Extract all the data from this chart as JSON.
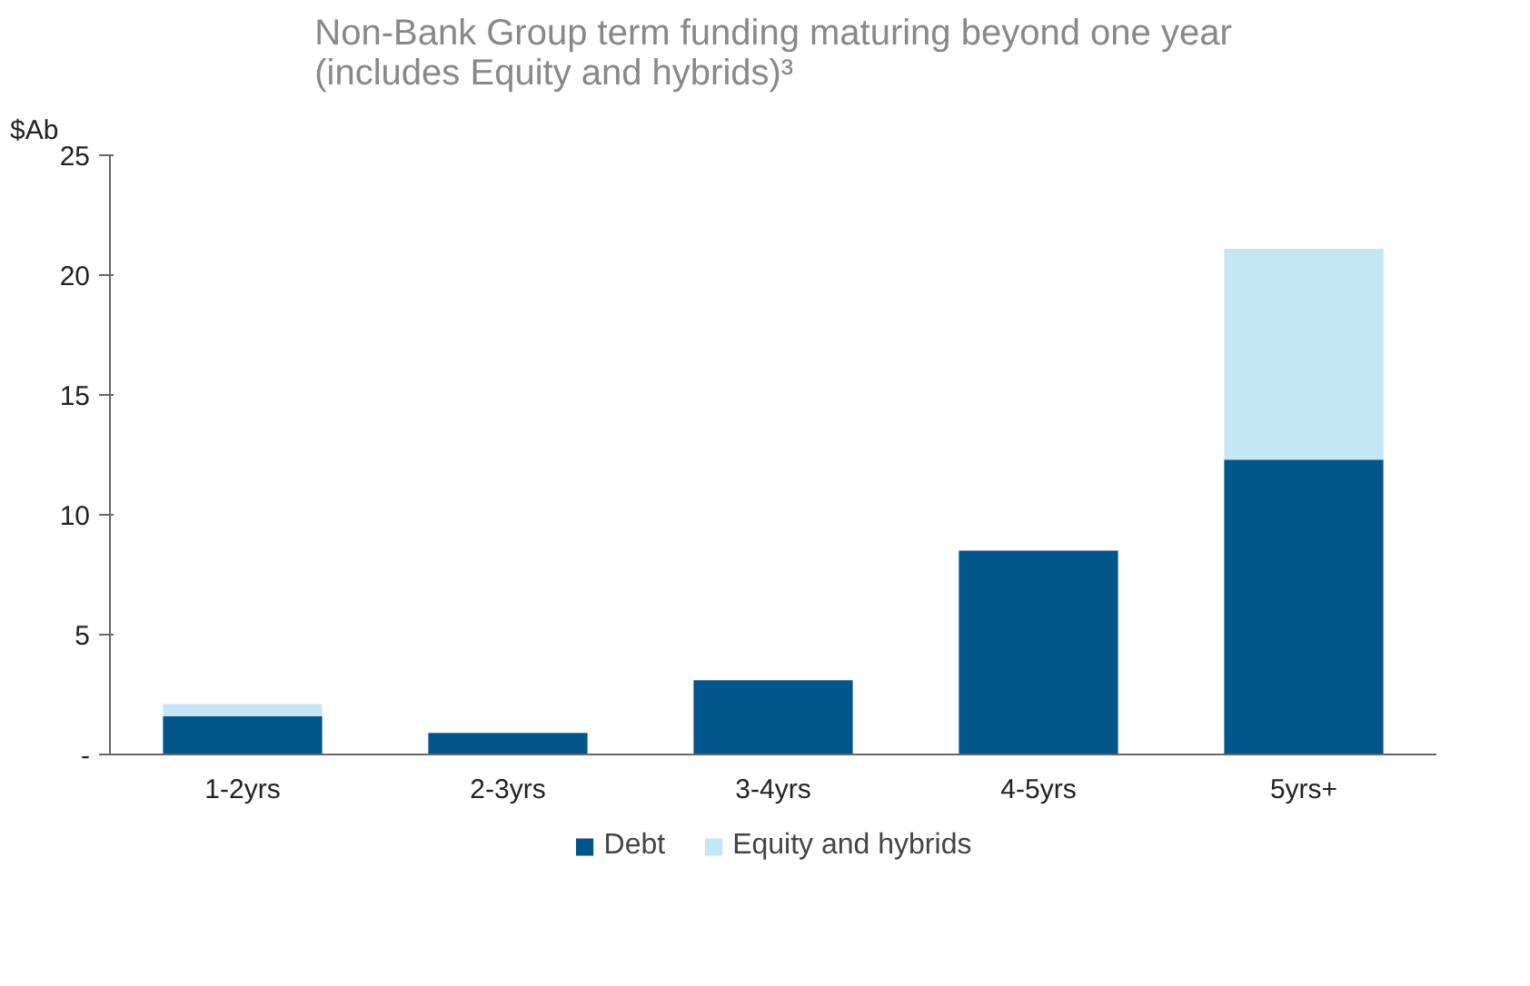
{
  "chart_data": {
    "type": "bar",
    "title": "Non-Bank Group term funding maturing beyond one year\n(includes Equity and hybrids)³",
    "ylabel": "$Ab",
    "categories": [
      "1-2yrs",
      "2-3yrs",
      "3-4yrs",
      "4-5yrs",
      "5yrs+"
    ],
    "series": [
      {
        "name": "Debt",
        "color": "#00558b",
        "values": [
          1.6,
          0.9,
          3.1,
          8.5,
          12.3
        ]
      },
      {
        "name": "Equity and hybrids",
        "color": "#c5e6f5",
        "values": [
          0.5,
          0,
          0,
          0,
          8.8
        ]
      }
    ],
    "stacked": true,
    "ylim": [
      0,
      25
    ],
    "yticks": [
      {
        "value": 0,
        "label": "-"
      },
      5,
      10,
      15,
      20,
      25
    ],
    "grid": false,
    "legend": "bottom"
  }
}
